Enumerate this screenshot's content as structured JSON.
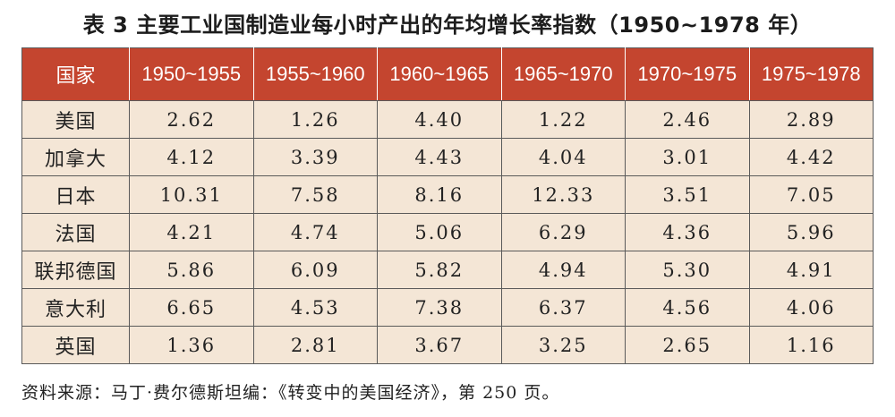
{
  "title": "表 3  主要工业国制造业每小时产出的年均增长率指数（1950~1978 年）",
  "source": "资料来源：马丁·费尔德斯坦编：《转变中的美国经济》，第 250 页。",
  "colors": {
    "header_bg": "#c4452f",
    "body_bg": "#f4e6d6"
  },
  "chart_data": {
    "type": "table",
    "title": "表 3  主要工业国制造业每小时产出的年均增长率指数（1950~1978 年）",
    "columns": [
      "国家",
      "1950~1955",
      "1955~1960",
      "1960~1965",
      "1965~1970",
      "1970~1975",
      "1975~1978"
    ],
    "rows": [
      {
        "country": "美国",
        "values": [
          "2.62",
          "1.26",
          "4.40",
          "1.22",
          "2.46",
          "2.89"
        ]
      },
      {
        "country": "加拿大",
        "values": [
          "4.12",
          "3.39",
          "4.43",
          "4.04",
          "3.01",
          "4.42"
        ]
      },
      {
        "country": "日本",
        "values": [
          "10.31",
          "7.58",
          "8.16",
          "12.33",
          "3.51",
          "7.05"
        ]
      },
      {
        "country": "法国",
        "values": [
          "4.21",
          "4.74",
          "5.06",
          "6.29",
          "4.36",
          "5.96"
        ]
      },
      {
        "country": "联邦德国",
        "values": [
          "5.86",
          "6.09",
          "5.82",
          "4.94",
          "5.30",
          "4.91"
        ]
      },
      {
        "country": "意大利",
        "values": [
          "6.65",
          "4.53",
          "7.38",
          "6.37",
          "4.56",
          "4.06"
        ]
      },
      {
        "country": "英国",
        "values": [
          "1.36",
          "2.81",
          "3.67",
          "3.25",
          "2.65",
          "1.16"
        ]
      }
    ]
  }
}
